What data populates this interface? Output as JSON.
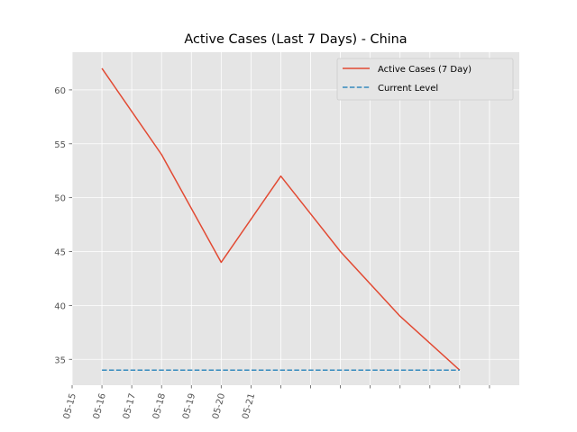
{
  "chart_data": {
    "type": "line",
    "title": "Active Cases (Last 7 Days) - China",
    "xlabel": "",
    "ylabel": "",
    "x": [
      "2020-05-15T12:00",
      "2020-05-16T12:00",
      "2020-05-17T12:00",
      "2020-05-18T12:00",
      "2020-05-19T12:00",
      "2020-05-20T12:00",
      "2020-05-21T12:00"
    ],
    "x_ticks": [
      "05-15",
      "05-16",
      "05-17",
      "05-18",
      "05-19",
      "05-20",
      "05-21",
      "",
      "",
      "",
      "",
      "",
      "",
      "",
      ""
    ],
    "xlim": [
      "2020-05-15T00:00",
      "2020-05-22T12:00"
    ],
    "ylim": [
      32.6,
      63.5
    ],
    "y_ticks": [
      35,
      40,
      45,
      50,
      55,
      60
    ],
    "grid": true,
    "legend_position": "top-right",
    "series": [
      {
        "name": "Active Cases (7 Day)",
        "style": "solid",
        "color": "#E24A33",
        "values": [
          62,
          54,
          44,
          52,
          45,
          39,
          34
        ]
      },
      {
        "name": "Current Level",
        "style": "dashed",
        "color": "#348ABD",
        "values": [
          34,
          34,
          34,
          34,
          34,
          34,
          34
        ]
      }
    ],
    "colors": {
      "plot_background": "#E5E5E5",
      "grid": "#FFFFFF",
      "tick_label": "#555555"
    }
  }
}
